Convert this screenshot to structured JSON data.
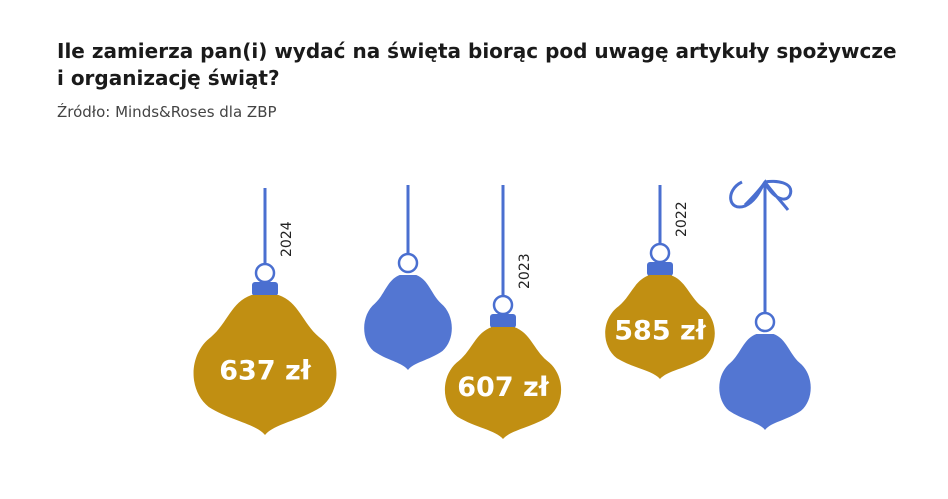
{
  "chart_data": {
    "type": "ornament",
    "title": "Ile zamierza pan(i) wydać na święta biorąc pod uwagę artykuły spożywcze i organizację świąt?",
    "subtitle": "Źródło: Minds&Roses dla ZBP",
    "categories": [
      "2024",
      "2023",
      "2022"
    ],
    "values": [
      637,
      607,
      585
    ],
    "value_labels": [
      "637 zł",
      "607 zł",
      "585 zł"
    ],
    "color": "#c18f12"
  }
}
